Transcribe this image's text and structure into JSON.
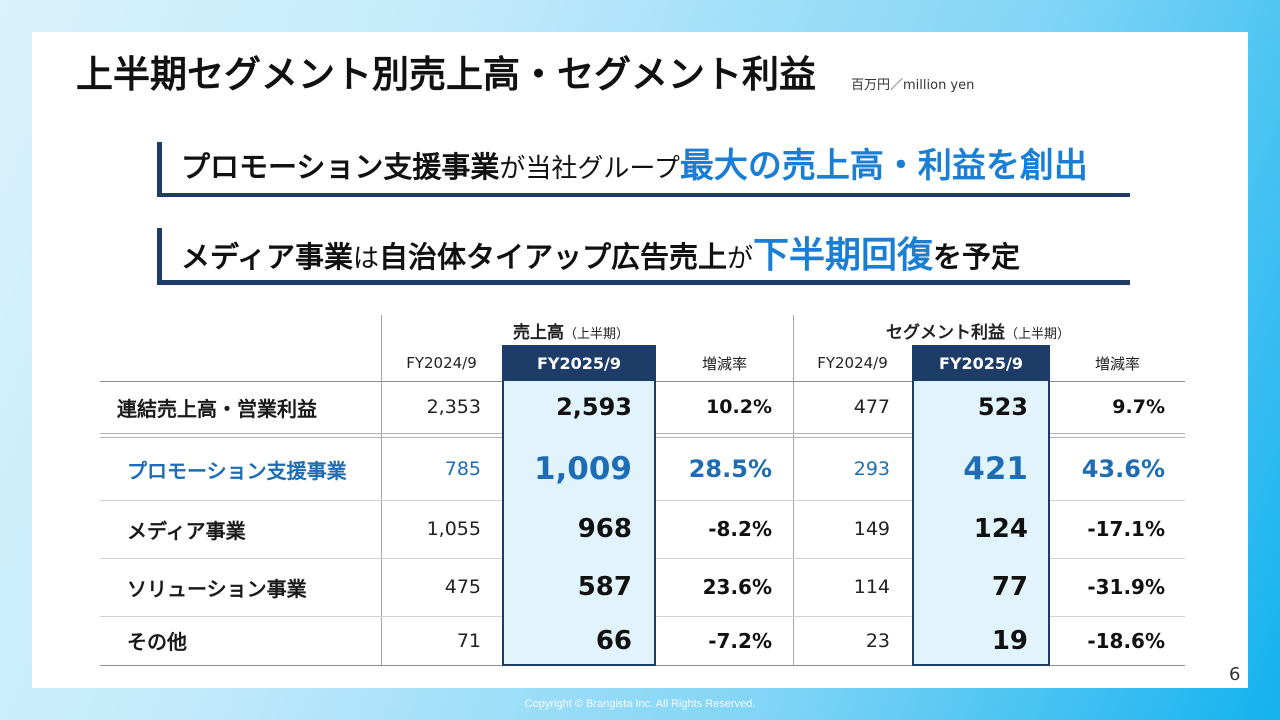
{
  "slide": {
    "title": "上半期セグメント別売上高・セグメント利益",
    "unit": "百万円／million yen",
    "page_number": "6",
    "copyright": "Copyright © Brangista Inc. All Rights Reserved."
  },
  "highlights": [
    [
      "プロモーション支援事業",
      "が当社グループ",
      "最大の売上高・利益を創出"
    ],
    [
      "メディア事業",
      "は",
      "自治体タイアップ広告売上",
      "が",
      "下半期回復",
      "を予定"
    ]
  ],
  "table": {
    "groups": [
      {
        "label": "売上高",
        "note": "（上半期）"
      },
      {
        "label": "セグメント利益",
        "note": "（上半期）"
      }
    ],
    "columns": [
      "FY2024/9",
      "FY2025/9",
      "増減率",
      "FY2024/9",
      "FY2025/9",
      "増減率"
    ],
    "rows": [
      {
        "label": "連結売上高・営業利益",
        "cells": [
          "2,353",
          "2,593",
          "10.2%",
          "477",
          "523",
          "9.7%"
        ]
      },
      {
        "label": "プロモーション支援事業",
        "cells": [
          "785",
          "1,009",
          "28.5%",
          "293",
          "421",
          "43.6%"
        ]
      },
      {
        "label": "メディア事業",
        "cells": [
          "1,055",
          "968",
          "-8.2%",
          "149",
          "124",
          "-17.1%"
        ]
      },
      {
        "label": "ソリューション事業",
        "cells": [
          "475",
          "587",
          "23.6%",
          "114",
          "77",
          "-31.9%"
        ]
      },
      {
        "label": "その他",
        "cells": [
          "71",
          "66",
          "-7.2%",
          "23",
          "19",
          "-18.6%"
        ]
      }
    ]
  },
  "colors": {
    "navy": "#1e3c68",
    "accent_blue": "#1a7fd4",
    "segment_blue": "#1e6db4",
    "highlight_fill": "#e1f3fb"
  }
}
